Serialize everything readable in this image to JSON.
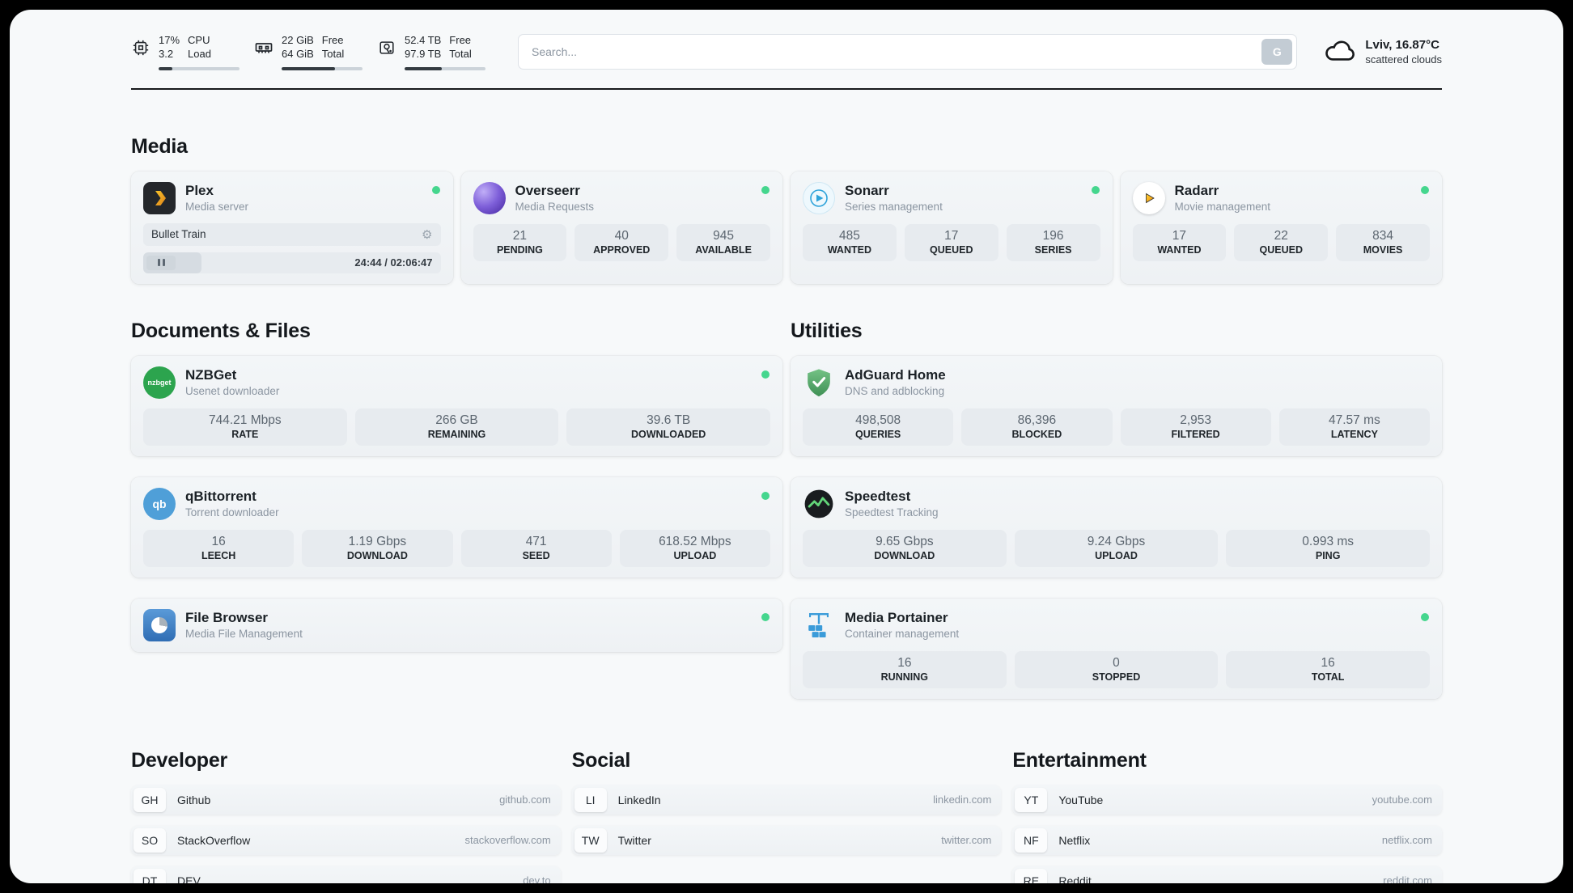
{
  "header": {
    "cpu": {
      "percent": "17%",
      "load": "3.2",
      "label1": "CPU",
      "label2": "Load",
      "progress": 17
    },
    "ram": {
      "free": "22 GiB",
      "total": "64 GiB",
      "label1": "Free",
      "label2": "Total",
      "progress": 66
    },
    "disk": {
      "free": "52.4 TB",
      "total": "97.9 TB",
      "label1": "Free",
      "label2": "Total",
      "progress": 46
    },
    "search": {
      "placeholder": "Search...",
      "button_label": "G"
    },
    "weather": {
      "location": "Lviv, 16.87°C",
      "condition": "scattered clouds"
    }
  },
  "sections": {
    "media": {
      "title": "Media",
      "cards": [
        {
          "name": "Plex",
          "desc": "Media server",
          "player": {
            "track": "Bullet Train",
            "time": "24:44 / 02:06:47",
            "progress": 19.5
          }
        },
        {
          "name": "Overseerr",
          "desc": "Media Requests",
          "stats": [
            {
              "value": "21",
              "label": "PENDING"
            },
            {
              "value": "40",
              "label": "APPROVED"
            },
            {
              "value": "945",
              "label": "AVAILABLE"
            }
          ]
        },
        {
          "name": "Sonarr",
          "desc": "Series management",
          "stats": [
            {
              "value": "485",
              "label": "WANTED"
            },
            {
              "value": "17",
              "label": "QUEUED"
            },
            {
              "value": "196",
              "label": "SERIES"
            }
          ]
        },
        {
          "name": "Radarr",
          "desc": "Movie management",
          "stats": [
            {
              "value": "17",
              "label": "WANTED"
            },
            {
              "value": "22",
              "label": "QUEUED"
            },
            {
              "value": "834",
              "label": "MOVIES"
            }
          ]
        }
      ]
    },
    "documents": {
      "title": "Documents & Files",
      "cards": [
        {
          "name": "NZBGet",
          "desc": "Usenet downloader",
          "icon_text": "nzbget",
          "stats": [
            {
              "value": "744.21 Mbps",
              "label": "RATE"
            },
            {
              "value": "266 GB",
              "label": "REMAINING"
            },
            {
              "value": "39.6 TB",
              "label": "DOWNLOADED"
            }
          ]
        },
        {
          "name": "qBittorrent",
          "desc": "Torrent downloader",
          "icon_text": "qb",
          "stats": [
            {
              "value": "16",
              "label": "LEECH"
            },
            {
              "value": "1.19 Gbps",
              "label": "DOWNLOAD"
            },
            {
              "value": "471",
              "label": "SEED"
            },
            {
              "value": "618.52 Mbps",
              "label": "UPLOAD"
            }
          ]
        },
        {
          "name": "File Browser",
          "desc": "Media File Management"
        }
      ]
    },
    "utilities": {
      "title": "Utilities",
      "cards": [
        {
          "name": "AdGuard Home",
          "desc": "DNS and adblocking",
          "stats": [
            {
              "value": "498,508",
              "label": "QUERIES"
            },
            {
              "value": "86,396",
              "label": "BLOCKED"
            },
            {
              "value": "2,953",
              "label": "FILTERED"
            },
            {
              "value": "47.57 ms",
              "label": "LATENCY"
            }
          ]
        },
        {
          "name": "Speedtest",
          "desc": "Speedtest Tracking",
          "stats": [
            {
              "value": "9.65 Gbps",
              "label": "DOWNLOAD"
            },
            {
              "value": "9.24 Gbps",
              "label": "UPLOAD"
            },
            {
              "value": "0.993 ms",
              "label": "PING"
            }
          ]
        },
        {
          "name": "Media Portainer",
          "desc": "Container management",
          "stats": [
            {
              "value": "16",
              "label": "RUNNING"
            },
            {
              "value": "0",
              "label": "STOPPED"
            },
            {
              "value": "16",
              "label": "TOTAL"
            }
          ]
        }
      ]
    },
    "developer": {
      "title": "Developer",
      "links": [
        {
          "abbr": "GH",
          "name": "Github",
          "url": "github.com"
        },
        {
          "abbr": "SO",
          "name": "StackOverflow",
          "url": "stackoverflow.com"
        },
        {
          "abbr": "DT",
          "name": "DEV",
          "url": "dev.to"
        }
      ]
    },
    "social": {
      "title": "Social",
      "links": [
        {
          "abbr": "LI",
          "name": "LinkedIn",
          "url": "linkedin.com"
        },
        {
          "abbr": "TW",
          "name": "Twitter",
          "url": "twitter.com"
        }
      ]
    },
    "entertainment": {
      "title": "Entertainment",
      "links": [
        {
          "abbr": "YT",
          "name": "YouTube",
          "url": "youtube.com"
        },
        {
          "abbr": "NF",
          "name": "Netflix",
          "url": "netflix.com"
        },
        {
          "abbr": "RE",
          "name": "Reddit",
          "url": "reddit.com"
        }
      ]
    }
  }
}
